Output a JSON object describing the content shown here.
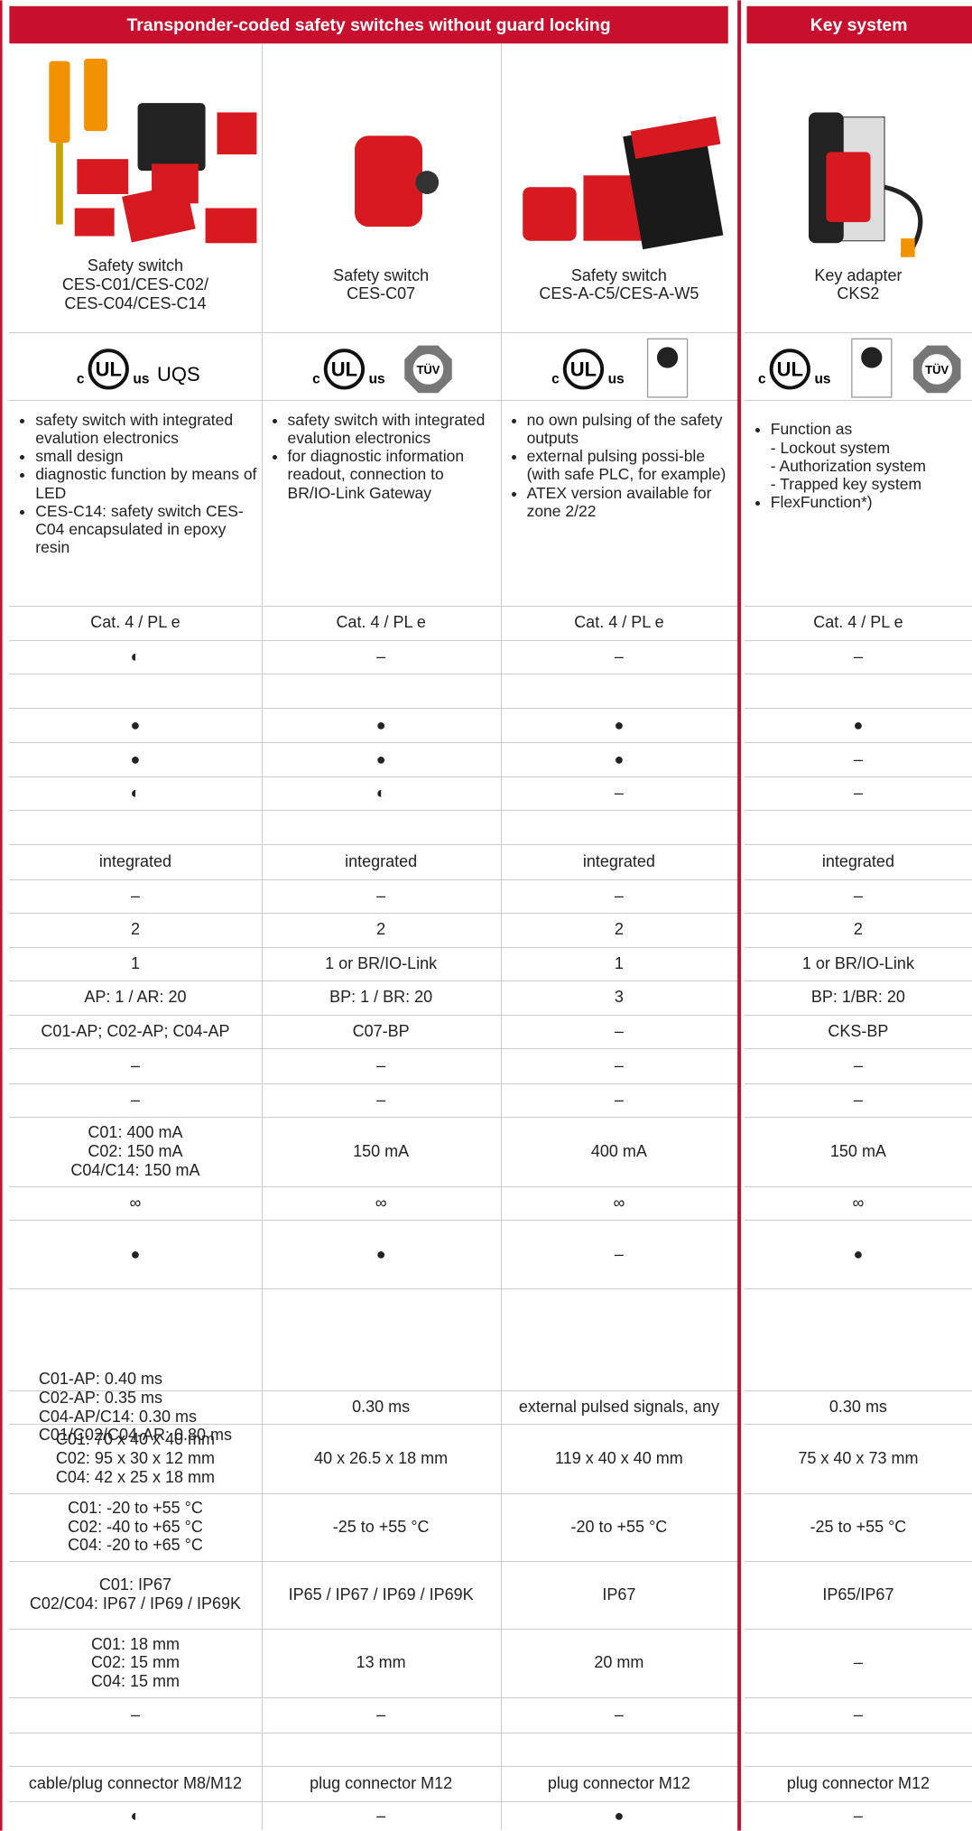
{
  "header": {
    "left": "Transponder-coded safety switches without guard locking",
    "right": "Key system"
  },
  "logo": {
    "c": "c",
    "mark": "UL",
    "us": "us",
    "tuv": "TÜV"
  },
  "products": [
    {
      "name": "Safety switch\nCES-C01/CES-C02/\nCES-C04/CES-C14",
      "cert": "UQS"
    },
    {
      "name": "Safety switch\nCES-C07"
    },
    {
      "name": "Safety switch\nCES-A-C5/CES-A-W5"
    },
    {
      "name": "Key adapter\nCKS2"
    }
  ],
  "features": [
    [
      "safety switch with integrated evalution electronics",
      "small design",
      "diagnostic function by means of LED",
      "CES-C14: safety switch CES-C04 encapsulated in epoxy resin"
    ],
    [
      "safety switch with integrated evalution electronics",
      "for diagnostic information readout, connection to BR/IO-Link Gateway"
    ],
    [
      "no own pulsing of the safety outputs",
      "external pulsing possi-ble (with safe PLC, for example)",
      "ATEX version available for zone 2/22"
    ],
    [
      "Function as\n - Lockout system\n - Authorization system\n - Trapped key system",
      "FlexFunction*)"
    ]
  ],
  "table": {
    "rows": [
      [
        "Cat. 4 / PL e",
        "Cat. 4 / PL e",
        "Cat. 4 / PL e",
        "Cat. 4 / PL e"
      ],
      [
        "◐",
        "–",
        "–",
        "–"
      ],
      [
        "●",
        "●",
        "●",
        "●"
      ],
      [
        "●",
        "●",
        "●",
        "–"
      ],
      [
        "◐",
        "◐",
        "–",
        "–"
      ],
      [
        "integrated",
        "integrated",
        "integrated",
        "integrated"
      ],
      [
        "–",
        "–",
        "–",
        "–"
      ],
      [
        "2",
        "2",
        "2",
        "2"
      ],
      [
        "1",
        "1 or BR/IO-Link",
        "1",
        "1 or BR/IO-Link"
      ],
      [
        "AP: 1 / AR: 20",
        "BP: 1 / BR: 20",
        "3",
        "BP: 1/BR: 20"
      ],
      [
        "C01-AP; C02-AP; C04-AP",
        "C07-BP",
        "–",
        "CKS-BP"
      ],
      [
        "–",
        "–",
        "–",
        "–"
      ],
      [
        "–",
        "–",
        "–",
        "–"
      ],
      [
        "C01: 400 mA\nC02: 150 mA\nC04/C14: 150 mA",
        "150 mA",
        "400 mA",
        "150 mA"
      ],
      [
        "∞",
        "∞",
        "∞",
        "∞"
      ],
      [
        "●",
        "●",
        "–",
        "●"
      ],
      [
        "C01-AP: 0.40 ms\nC02-AP: 0.35 ms\nC04-AP/C14: 0.30 ms\nC01/C02/C04-AR: 0.80 ms",
        "0.30 ms",
        "external pulsed signals, any",
        "0.30 ms"
      ],
      [
        "C01: 70 x 40 x 40 mm\nC02: 95 x 30 x 12 mm\nC04: 42 x 25 x 18 mm",
        "40 x 26.5 x 18 mm",
        "119 x 40 x 40 mm",
        "75 x 40 x 73 mm"
      ],
      [
        "C01: -20 to +55 °C\nC02: -40 to +65 °C\nC04: -20 to +65 °C",
        "-25 to +55 °C",
        "-20 to +55 °C",
        "-25 to +55 °C"
      ],
      [
        "C01: IP67\nC02/C04: IP67 / IP69 / IP69K",
        "IP65 / IP67 / IP69 / IP69K",
        "IP67",
        "IP65/IP67"
      ],
      [
        "C01: 18 mm\nC02: 15 mm\nC04: 15 mm",
        "13 mm",
        "20 mm",
        "–"
      ],
      [
        "–",
        "–",
        "–",
        "–"
      ],
      [
        "cable/plug connector M8/M12",
        "plug connector M12",
        "plug connector M12",
        "plug connector M12"
      ],
      [
        "◐",
        "–",
        "●",
        "–"
      ]
    ]
  }
}
